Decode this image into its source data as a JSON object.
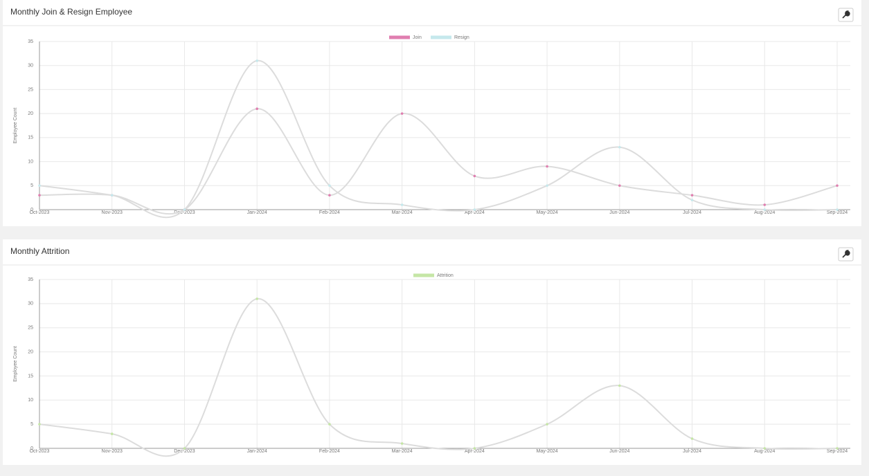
{
  "chart_data": [
    {
      "type": "line",
      "title": "Monthly Join & Resign Employee",
      "y_label": "Employee Count",
      "categories": [
        "Oct-2023",
        "Nov-2023",
        "Dec-2023",
        "Jan-2024",
        "Feb-2024",
        "Mar-2024",
        "Apr-2024",
        "May-2024",
        "Jun-2024",
        "Jul-2024",
        "Aug-2024",
        "Sep-2024"
      ],
      "series": [
        {
          "name": "Join",
          "color": "#e07fb0",
          "values": [
            3,
            3,
            0,
            21,
            3,
            20,
            7,
            9,
            5,
            3,
            1,
            5
          ]
        },
        {
          "name": "Resign",
          "color": "#c5e8ec",
          "values": [
            5,
            3,
            0,
            31,
            5,
            1,
            0,
            5,
            13,
            2,
            0,
            0
          ]
        }
      ],
      "ylim": [
        0,
        35
      ],
      "yticks": [
        0,
        5,
        10,
        15,
        20,
        25,
        30,
        35
      ],
      "grid": true,
      "legend": "top"
    },
    {
      "type": "line",
      "title": "Monthly Attrition",
      "y_label": "Employee Count",
      "categories": [
        "Oct-2023",
        "Nov-2023",
        "Dec-2023",
        "Jan-2024",
        "Feb-2024",
        "Mar-2024",
        "Apr-2024",
        "May-2024",
        "Jun-2024",
        "Jul-2024",
        "Aug-2024",
        "Sep-2024"
      ],
      "series": [
        {
          "name": "Attrition",
          "color": "#c5e6a6",
          "values": [
            5,
            3,
            0,
            31,
            5,
            1,
            0,
            5,
            13,
            2,
            0,
            0
          ]
        }
      ],
      "ylim": [
        0,
        35
      ],
      "yticks": [
        0,
        5,
        10,
        15,
        20,
        25,
        30,
        35
      ],
      "grid": true,
      "legend": "top"
    }
  ]
}
